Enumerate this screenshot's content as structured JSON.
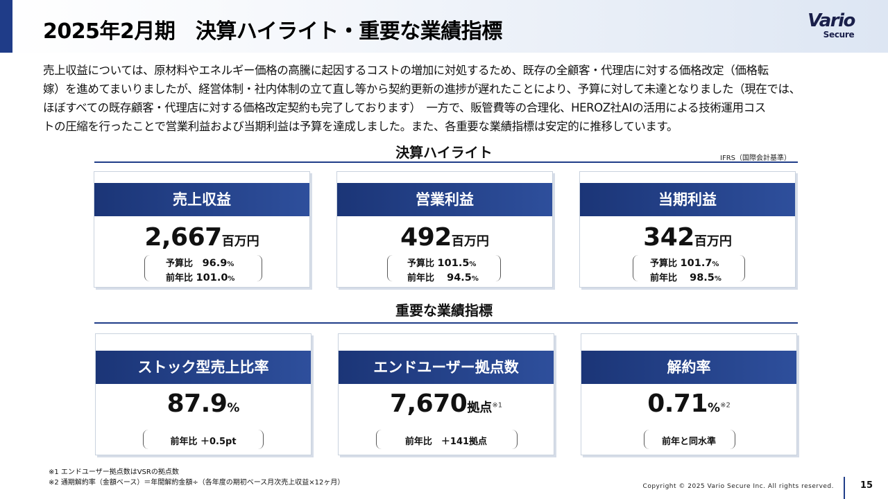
{
  "header": {
    "title": "2025年2月期　決算ハイライト・重要な業績指標",
    "logo_main": "Vario",
    "logo_sub": "Secure"
  },
  "intro": {
    "line1": "売上収益については、原材料やエネルギー価格の高騰に起因するコストの増加に対処するため、既存の全顧客・代理店に対する価格改定（価格転",
    "line2": "嫁）を進めてまいりましたが、経営体制・社内体制の立て直し等から契約更新の進捗が遅れたことにより、予算に対して未達となりました（現在では、",
    "line3": "ほぼすべての既存顧客・代理店に対する価格改定契約も完了しております）　一方で、販管費等の合理化、HEROZ社AIの活用による技術運用コス",
    "line4": "トの圧縮を行ったことで営業利益および当期利益は予算を達成しました。また、各重要な業績指標は安定的に推移しています。"
  },
  "highlights": {
    "section_title": "決算ハイライト",
    "standard": "IFRS（国際会計基準）",
    "cards": [
      {
        "title": "売上収益",
        "value": "2,667",
        "unit": "百万円",
        "budget_label": "予算比",
        "budget_value": "96.9",
        "prior_label": "前年比",
        "prior_value": "101.0",
        "pct": "%"
      },
      {
        "title": "営業利益",
        "value": "492",
        "unit": "百万円",
        "budget_label": "予算比",
        "budget_value": "101.5",
        "prior_label": "前年比",
        "prior_value": "94.5",
        "pct": "%"
      },
      {
        "title": "当期利益",
        "value": "342",
        "unit": "百万円",
        "budget_label": "予算比",
        "budget_value": "101.7",
        "prior_label": "前年比",
        "prior_value": "98.5",
        "pct": "%"
      }
    ]
  },
  "kpis": {
    "section_title": "重要な業績指標",
    "cards": [
      {
        "title": "ストック型売上比率",
        "value": "87.9",
        "unit": "%",
        "note": "",
        "comparison": "前年比 ＋0.5pt"
      },
      {
        "title": "エンドユーザー拠点数",
        "value": "7,670",
        "unit": "拠点",
        "note": "※1",
        "comparison": "前年比　＋141拠点"
      },
      {
        "title": "解約率",
        "value": "0.71",
        "unit": "%",
        "note": "※2",
        "comparison": "前年と同水準"
      }
    ]
  },
  "footnotes": {
    "note1": "※1 エンドユーザー拠点数はVSRの拠点数",
    "note2": "※2 通期解約率（金額ベース）＝年間解約金額÷（各年度の期初ベース月次売上収益×12ヶ月）"
  },
  "footer": {
    "copyright": "Copyright © 2025 Vario Secure Inc. All rights reserved.",
    "page_number": "15"
  }
}
